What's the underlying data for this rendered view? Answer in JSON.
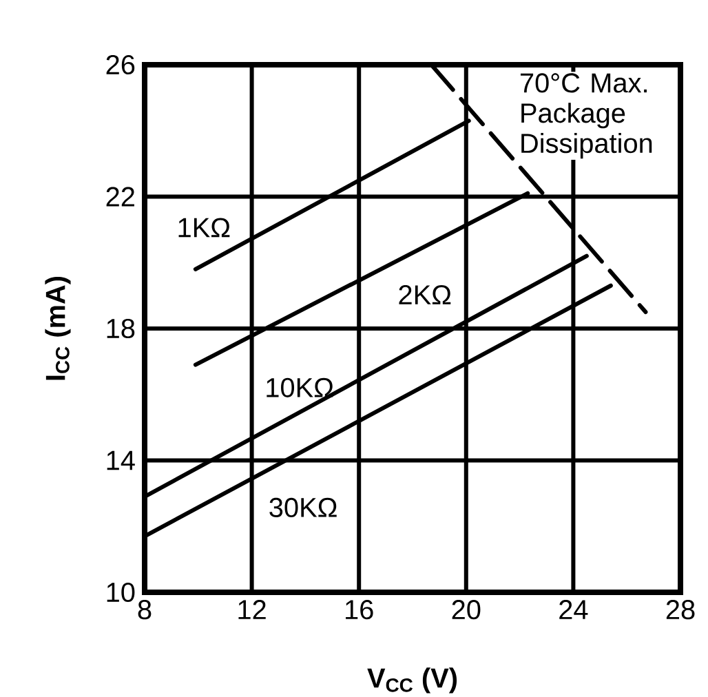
{
  "chart_data": {
    "type": "line",
    "xlabel": "V$_{CC}$ (V)",
    "ylabel": "I$_{CC}$ (mA)",
    "xlim": [
      8,
      28
    ],
    "ylim": [
      10,
      26
    ],
    "xticks": [
      8,
      12,
      16,
      20,
      24,
      28
    ],
    "yticks": [
      10,
      14,
      18,
      22,
      26
    ],
    "grid": true,
    "series": [
      {
        "name": "1KΩ",
        "color": "#000000",
        "x": [
          9.9,
          20.1
        ],
        "values": [
          19.8,
          24.3
        ]
      },
      {
        "name": "2KΩ",
        "color": "#000000",
        "x": [
          9.9,
          22.3
        ],
        "values": [
          16.9,
          22.1
        ]
      },
      {
        "name": "10KΩ",
        "color": "#000000",
        "x": [
          8,
          24.5
        ],
        "values": [
          12.9,
          20.2
        ]
      },
      {
        "name": "30KΩ",
        "color": "#000000",
        "x": [
          8,
          25.4
        ],
        "values": [
          11.7,
          19.3
        ]
      },
      {
        "name": "70°C Max. Package Dissipation",
        "color": "#000000",
        "line_style": "dashed",
        "x": [
          18.7,
          26.7
        ],
        "values": [
          26,
          18.5
        ]
      }
    ]
  }
}
